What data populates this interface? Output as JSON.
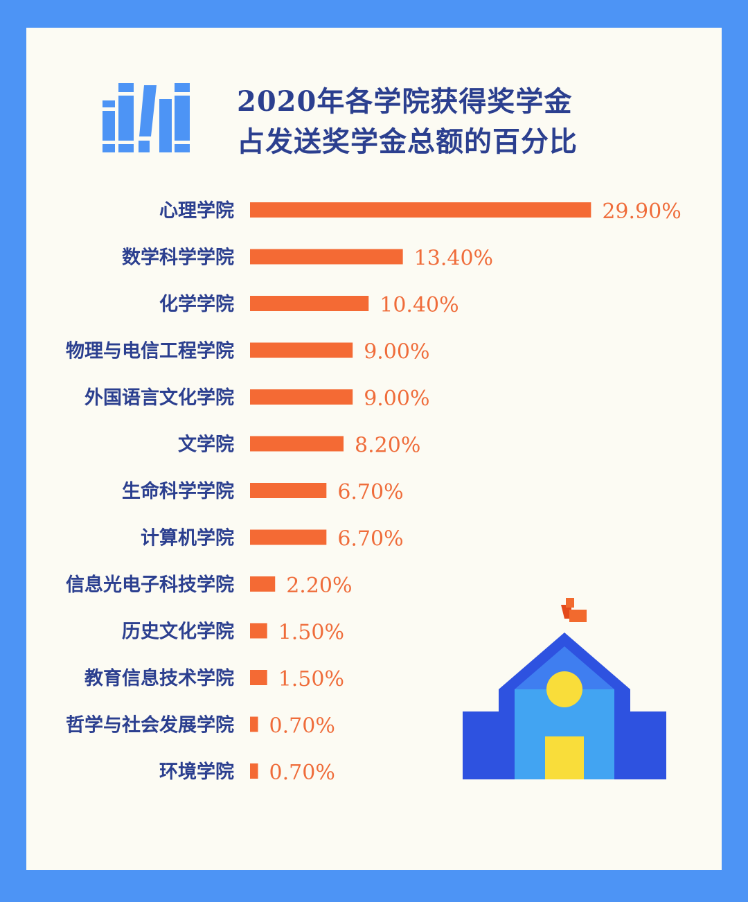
{
  "colors": {
    "background": "#4d94f5",
    "card": "#fcfbf3",
    "title": "#2b3f8f",
    "category_text": "#2b3f8f",
    "bar": "#f46a34",
    "value_text": "#ef6c3a"
  },
  "icons": [
    "books-icon",
    "school-building-icon"
  ],
  "chart_data": {
    "type": "bar",
    "orientation": "horizontal",
    "title_lines": [
      "2020年各学院获得奖学金",
      "占发送奖学金总额的百分比"
    ],
    "categories": [
      "心理学院",
      "数学科学学院",
      "化学学院",
      "物理与电信工程学院",
      "外国语言文化学院",
      "文学院",
      "生命科学学院",
      "计算机学院",
      "信息光电子科技学院",
      "历史文化学院",
      "教育信息技术学院",
      "哲学与社会发展学院",
      "环境学院"
    ],
    "values": [
      29.9,
      13.4,
      10.4,
      9.0,
      9.0,
      8.2,
      6.7,
      6.7,
      2.2,
      1.5,
      1.5,
      0.7,
      0.7
    ],
    "value_labels": [
      "29.90%",
      "13.40%",
      "10.40%",
      "9.00%",
      "9.00%",
      "8.20%",
      "6.70%",
      "6.70%",
      "2.20%",
      "1.50%",
      "1.50%",
      "0.70%",
      "0.70%"
    ],
    "unit": "%",
    "xlim": [
      0,
      30
    ],
    "grid": false,
    "legend": "none"
  }
}
